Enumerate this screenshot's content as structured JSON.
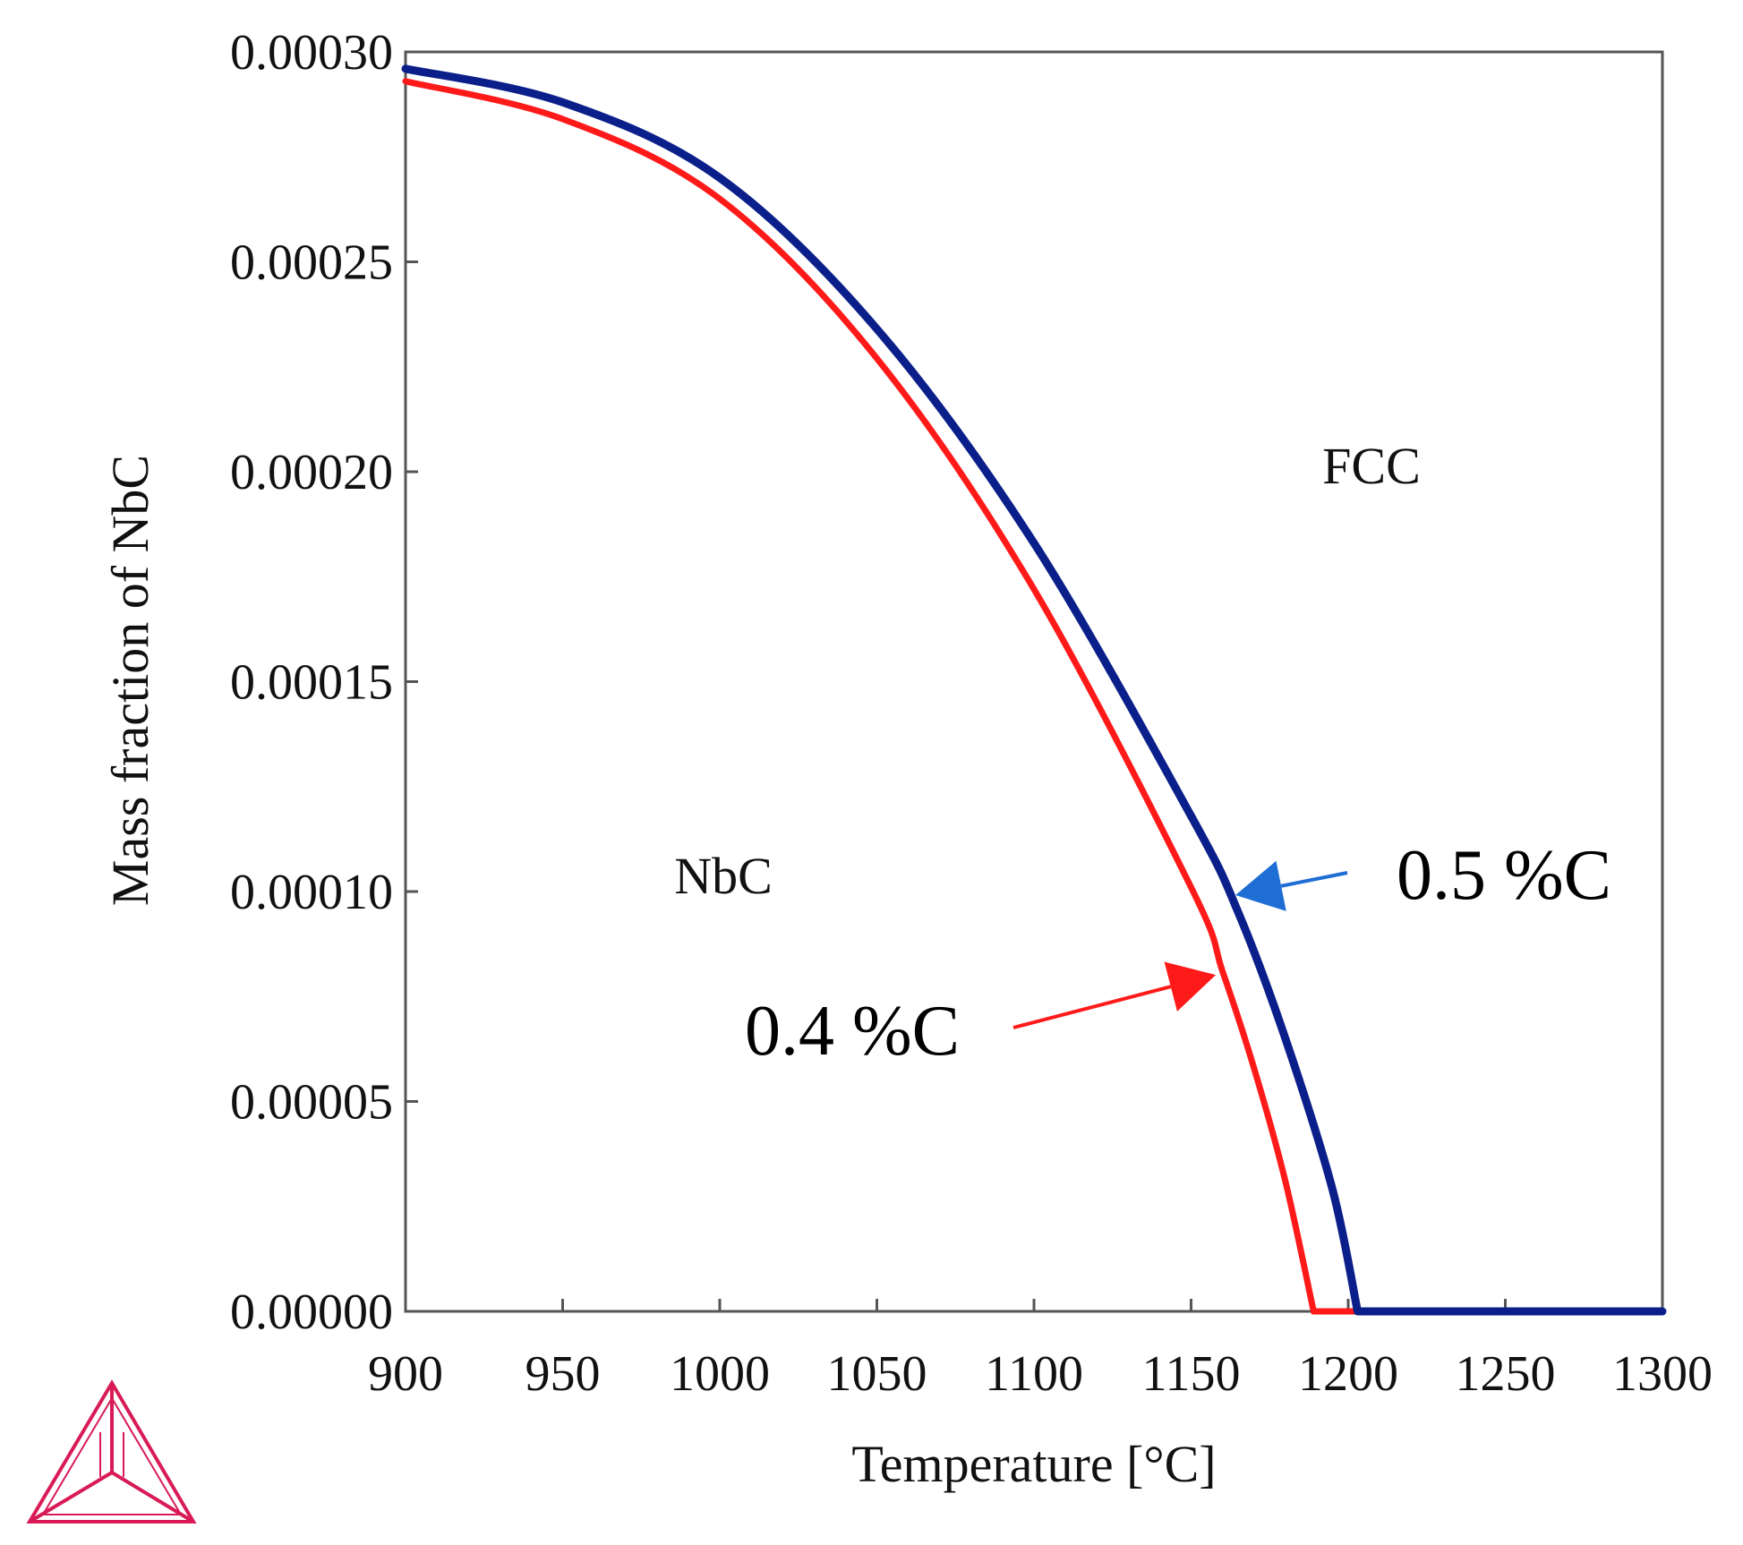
{
  "chart_data": {
    "type": "line",
    "title": "",
    "xlabel": "Temperature [°C]",
    "ylabel": "Mass fraction of NbC",
    "xlim": [
      900,
      1300
    ],
    "ylim": [
      0,
      0.0003
    ],
    "xticks": [
      "900",
      "950",
      "1000",
      "1050",
      "1100",
      "1150",
      "1200",
      "1250",
      "1300"
    ],
    "yticks": [
      "0.00000",
      "0.00005",
      "0.00010",
      "0.00015",
      "0.00020",
      "0.00025",
      "0.00030"
    ],
    "grid": false,
    "region_labels": {
      "nbc": "NbC",
      "fcc": "FCC"
    },
    "series": [
      {
        "name": "0.5 %C",
        "color": "#0b1f8a",
        "x": [
          900,
          950,
          1000,
          1050,
          1100,
          1150,
          1165,
          1180,
          1195,
          1203,
          1300
        ],
        "y": [
          0.000296,
          0.000288,
          0.00027,
          0.000234,
          0.000183,
          0.000118,
          9.5e-05,
          6.5e-05,
          2.9e-05,
          0.0,
          0.0
        ]
      },
      {
        "name": "0.4 %C",
        "color": "#ff1a1a",
        "x": [
          900,
          950,
          1000,
          1050,
          1100,
          1150,
          1160,
          1170,
          1180,
          1189,
          1300
        ],
        "y": [
          0.000293,
          0.000284,
          0.000265,
          0.000227,
          0.000172,
          0.000101,
          8.1e-05,
          5.8e-05,
          3.1e-05,
          0.0,
          0.0
        ]
      }
    ],
    "annotations": [
      {
        "text": "0.5 %C",
        "color": "#1e6ed6",
        "series": 0,
        "arrow_to": [
          1163,
          0.0001
        ]
      },
      {
        "text": "0.4 %C",
        "color": "#ff1a1a",
        "series": 1,
        "arrow_to": [
          1159,
          8.1e-05
        ]
      }
    ]
  },
  "logo": {
    "name": "thermo-calc-triangle-logo",
    "color": "#d81b57"
  }
}
